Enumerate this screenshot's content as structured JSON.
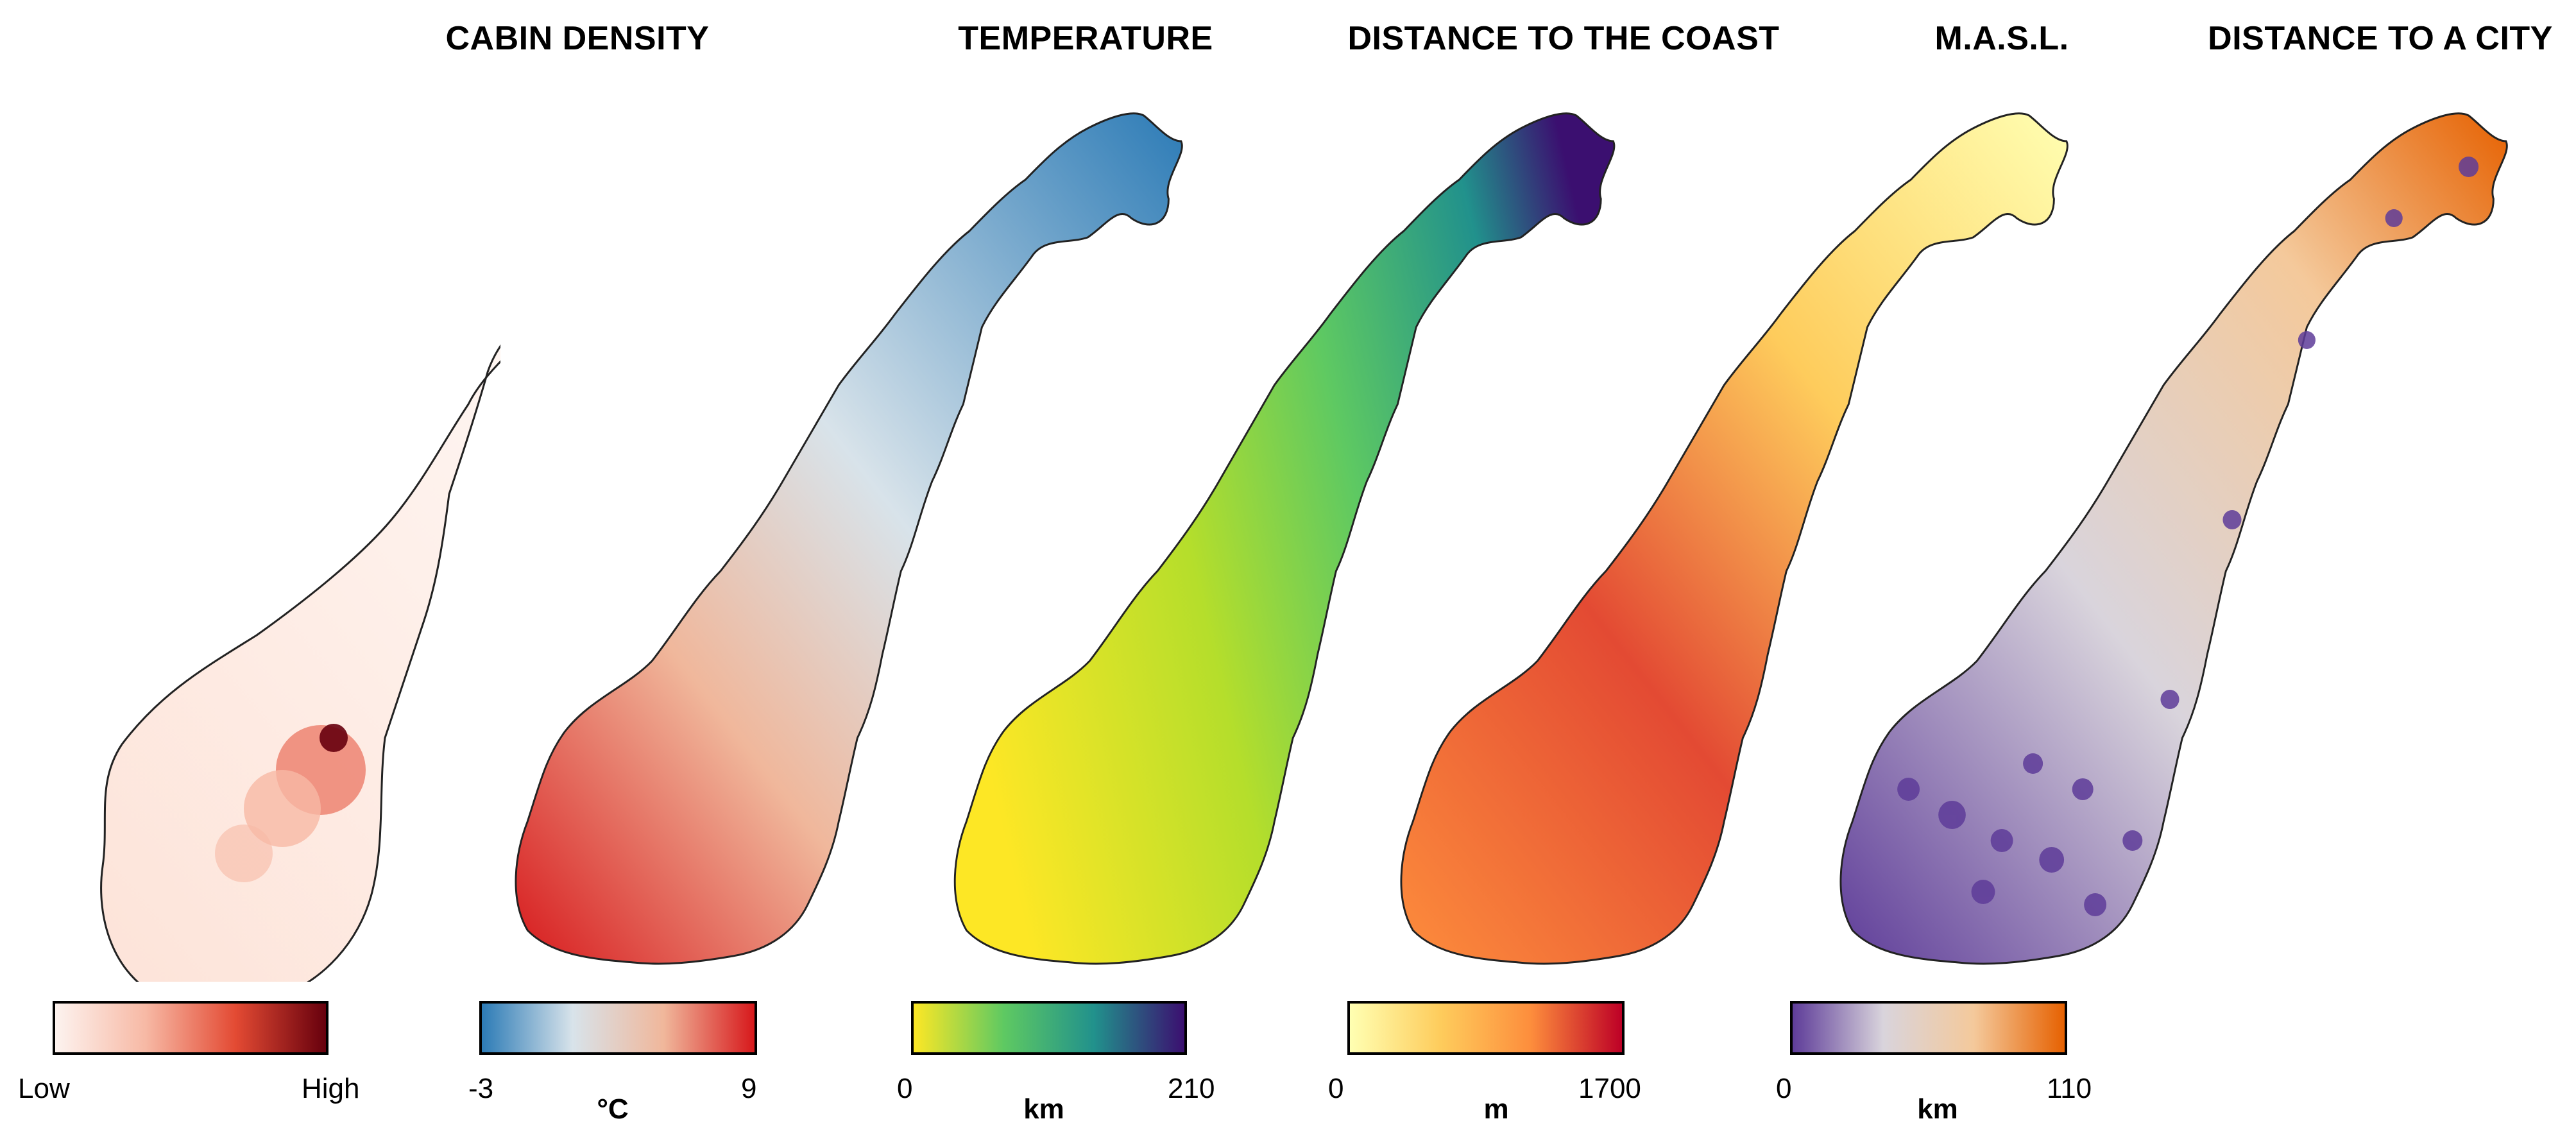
{
  "panels": [
    {
      "title": "CABIN DENSITY",
      "min": "Low",
      "max": "High",
      "unit": "",
      "colors": {
        "a": "#fdf3ef",
        "b": "#f7b9a5",
        "c": "#e34a33",
        "d": "#67000d"
      }
    },
    {
      "title": "TEMPERATURE",
      "min": "-3",
      "max": "9",
      "unit": "°C",
      "colors": {
        "a": "#2c7bb6",
        "b": "#d8e3ea",
        "c": "#f0b79b",
        "d": "#d7191c"
      }
    },
    {
      "title": "DISTANCE TO THE COAST",
      "min": "0",
      "max": "210",
      "unit": "km",
      "colors": {
        "a": "#fde725",
        "b": "#5ec962",
        "c": "#21918c",
        "d": "#3b0f70"
      }
    },
    {
      "title": "M.A.S.L.",
      "min": "0",
      "max": "1700",
      "unit": "m",
      "colors": {
        "a": "#ffffb2",
        "b": "#fecc5c",
        "c": "#fd8d3c",
        "d": "#bd0026"
      }
    },
    {
      "title": "DISTANCE TO A CITY",
      "min": "0",
      "max": "110",
      "unit": "km",
      "colors": {
        "a": "#5e3c99",
        "b": "#d9d4dc",
        "c": "#f4c99b",
        "d": "#e66101"
      }
    }
  ]
}
